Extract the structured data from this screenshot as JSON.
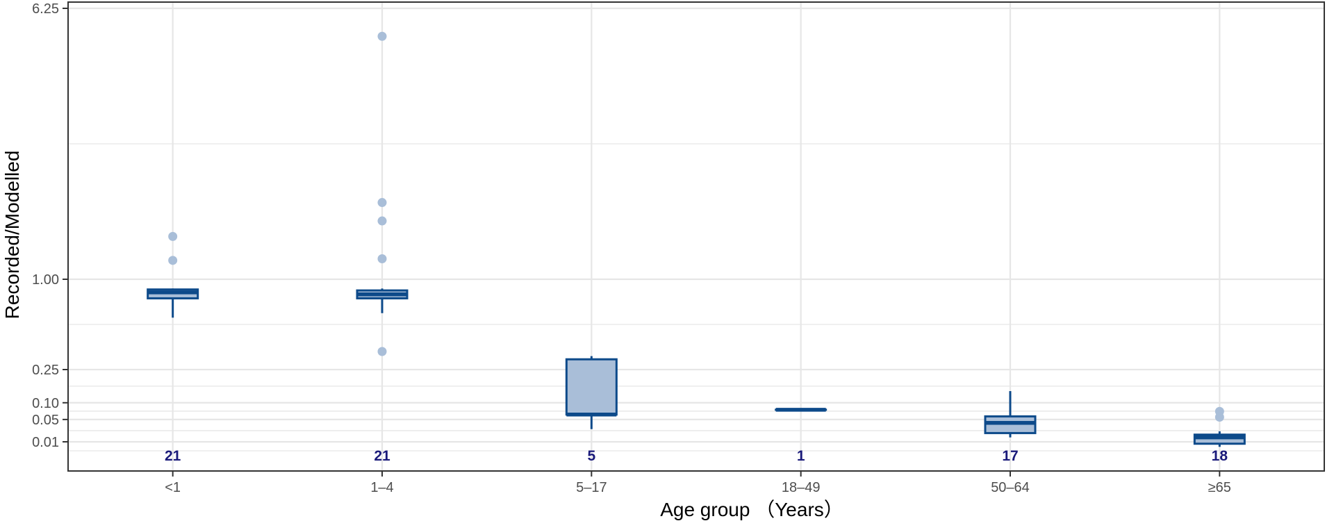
{
  "chart_data": {
    "type": "boxplot",
    "title": "",
    "xlabel": "Age group （Years）",
    "ylabel": "Recorded/Modelled",
    "y_scale": "sqrt",
    "ylim": [
      0,
      6.9
    ],
    "y_ticks": [
      {
        "value": 0.01,
        "label": "0.01"
      },
      {
        "value": 0.05,
        "label": "0.05"
      },
      {
        "value": 0.1,
        "label": "0.10"
      },
      {
        "value": 0.25,
        "label": "0.25"
      },
      {
        "value": 1.0,
        "label": "1.00"
      },
      {
        "value": 6.25,
        "label": "6.25"
      }
    ],
    "categories": [
      "<1",
      "1–4",
      "5–17",
      "18–49",
      "50–64",
      "≥65"
    ],
    "boxes": [
      {
        "category": "<1",
        "min": 0.62,
        "q1": 0.8,
        "median": 0.86,
        "q3": 0.89,
        "max": 0.9,
        "outliers": [
          1.53,
          1.22
        ],
        "n": "21"
      },
      {
        "category": "1–4",
        "min": 0.66,
        "q1": 0.8,
        "median": 0.84,
        "q3": 0.88,
        "max": 0.9,
        "outliers": [
          5.5,
          2.03,
          1.75,
          1.24,
          0.36
        ],
        "n": "21"
      },
      {
        "category": "5–17",
        "min": 0.029,
        "q1": 0.063,
        "median": 0.063,
        "q3": 0.31,
        "max": 0.33,
        "outliers": [],
        "n": "5"
      },
      {
        "category": "18–49",
        "min": 0.077,
        "q1": 0.077,
        "median": 0.077,
        "q3": 0.077,
        "max": 0.077,
        "outliers": [],
        "n": "1"
      },
      {
        "category": "50–64",
        "min": 0.0155,
        "q1": 0.022,
        "median": 0.042,
        "q3": 0.058,
        "max": 0.145,
        "outliers": [],
        "n": "17"
      },
      {
        "category": "≥65",
        "min": 0.0052,
        "q1": 0.008,
        "median": 0.0155,
        "q3": 0.0195,
        "max": 0.025,
        "outliers": [
          0.072,
          0.056
        ],
        "n": "18"
      }
    ],
    "colors": {
      "box_fill": "#a9bed8",
      "box_stroke": "#0d4a8a",
      "outlier": "#a9bed8",
      "count_text": "#1a1a7a",
      "grid": "#e6e6e6",
      "panel_border": "#333333"
    }
  }
}
